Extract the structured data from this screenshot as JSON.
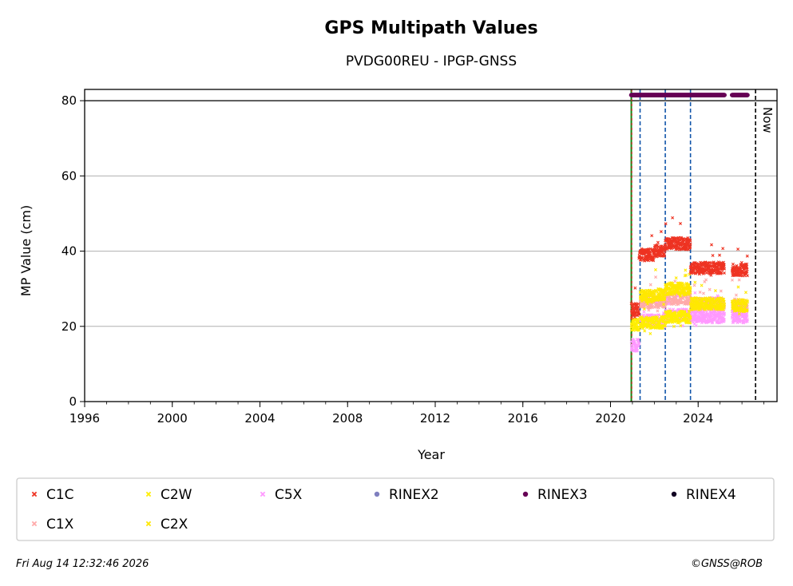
{
  "chart_data": {
    "type": "scatter",
    "title": "GPS Multipath Values",
    "subtitle": "PVDG00REU - IPGP-GNSS",
    "xlabel": "Year",
    "ylabel": "MP Value (cm)",
    "xlim": [
      1996,
      2027.6
    ],
    "ylim": [
      0,
      83
    ],
    "xticks": [
      "1996",
      "2000",
      "2004",
      "2008",
      "2012",
      "2016",
      "2020",
      "2024"
    ],
    "yticks": [
      "0",
      "20",
      "40",
      "60",
      "80"
    ],
    "grid": "horizontal",
    "now_label": "Now",
    "now_year": 2026.62,
    "rinex3_level": 81.5,
    "hline": 80,
    "vlines_green": [
      2020.95
    ],
    "vlines_red": [
      2020.97
    ],
    "vlines_blue": [
      2021.35,
      2022.5,
      2023.65
    ],
    "series": [
      {
        "name": "C1C",
        "color": "#ee3322",
        "marker": "x",
        "segments": [
          [
            2020.95,
            2021.3,
            24.5
          ],
          [
            2021.3,
            2022.0,
            39.0
          ],
          [
            2022.0,
            2022.5,
            40.0
          ],
          [
            2022.5,
            2023.65,
            42.0
          ],
          [
            2023.65,
            2025.2,
            35.5
          ],
          [
            2025.55,
            2026.25,
            35.0
          ]
        ]
      },
      {
        "name": "C1X",
        "color": "#ffaaaa",
        "marker": "x",
        "segments": [
          [
            2021.35,
            2022.5,
            26.5
          ],
          [
            2022.5,
            2023.65,
            27.5
          ],
          [
            2023.65,
            2025.2,
            26.0
          ],
          [
            2025.55,
            2026.25,
            25.5
          ]
        ]
      },
      {
        "name": "C2W",
        "color": "#ffee00",
        "marker": "x",
        "segments": [
          [
            2020.95,
            2021.3,
            20.5
          ],
          [
            2021.35,
            2022.5,
            21.0
          ],
          [
            2022.5,
            2023.65,
            22.5
          ]
        ]
      },
      {
        "name": "C2X",
        "color": "#ffe800",
        "marker": "x",
        "segments": [
          [
            2021.35,
            2022.0,
            28.0
          ],
          [
            2022.0,
            2022.5,
            28.5
          ],
          [
            2022.5,
            2023.65,
            30.0
          ],
          [
            2023.65,
            2025.2,
            26.0
          ],
          [
            2025.55,
            2026.25,
            25.5
          ]
        ]
      },
      {
        "name": "C5X",
        "color": "#ff99ff",
        "marker": "x",
        "segments": [
          [
            2020.95,
            2021.3,
            15.0
          ],
          [
            2021.35,
            2022.5,
            21.5
          ],
          [
            2022.5,
            2023.65,
            23.0
          ],
          [
            2023.65,
            2025.2,
            22.5
          ],
          [
            2025.55,
            2026.25,
            22.5
          ]
        ]
      },
      {
        "name": "RINEX2",
        "color": "#7f7fbf",
        "marker": "o",
        "segments": []
      },
      {
        "name": "RINEX3",
        "color": "#660055",
        "marker": "o",
        "segments": [
          [
            2020.95,
            2025.2,
            81.5
          ],
          [
            2025.55,
            2026.25,
            81.5
          ]
        ]
      },
      {
        "name": "RINEX4",
        "color": "#110022",
        "marker": "o",
        "segments": []
      }
    ]
  },
  "legend": {
    "items": [
      {
        "label": "C1C",
        "color": "#ee3322",
        "marker": "x"
      },
      {
        "label": "C2W",
        "color": "#ffee00",
        "marker": "x"
      },
      {
        "label": "C5X",
        "color": "#ff99ff",
        "marker": "x"
      },
      {
        "label": "RINEX2",
        "color": "#7f7fbf",
        "marker": "o"
      },
      {
        "label": "RINEX3",
        "color": "#660055",
        "marker": "o"
      },
      {
        "label": "RINEX4",
        "color": "#110022",
        "marker": "o"
      },
      {
        "label": "C1X",
        "color": "#ffaaaa",
        "marker": "x"
      },
      {
        "label": "C2X",
        "color": "#ffe800",
        "marker": "x"
      }
    ]
  },
  "footer": {
    "timestamp": "Fri Aug 14 12:32:46 2026",
    "copyright": "©GNSS@ROB"
  }
}
